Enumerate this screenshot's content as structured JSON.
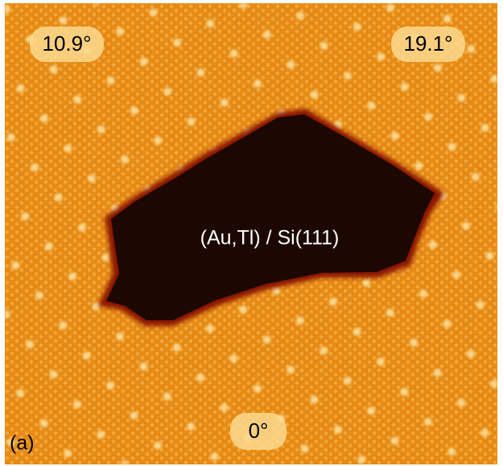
{
  "image": {
    "angle_labels": [
      "10.9°",
      "19.1°",
      "0°"
    ],
    "region_label": "(Au,Tl) / Si(111)",
    "panel_label": "(a)"
  }
}
